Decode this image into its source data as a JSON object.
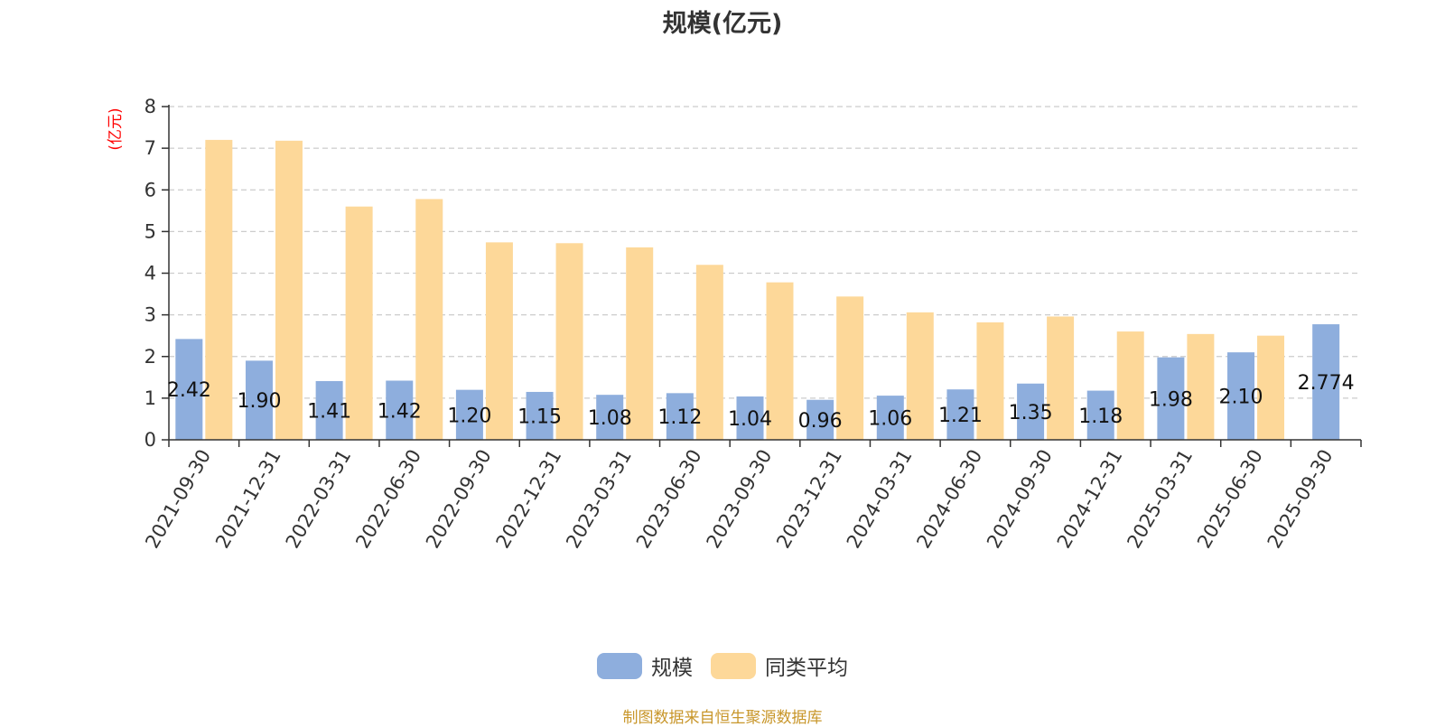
{
  "chart_data": {
    "type": "bar",
    "title": "规模(亿元)",
    "ylabel": "(亿元)",
    "xlabel": "",
    "ylim": [
      0,
      8
    ],
    "yticks": [
      0,
      1,
      2,
      3,
      4,
      5,
      6,
      7,
      8
    ],
    "grid": true,
    "legend_position": "bottom",
    "categories": [
      "2021-09-30",
      "2021-12-31",
      "2022-03-31",
      "2022-06-30",
      "2022-09-30",
      "2022-12-31",
      "2023-03-31",
      "2023-06-30",
      "2023-09-30",
      "2023-12-31",
      "2024-03-31",
      "2024-06-30",
      "2024-09-30",
      "2024-12-31",
      "2025-03-31",
      "2025-06-30",
      "2025-09-30"
    ],
    "series": [
      {
        "name": "规模",
        "color": "#8eaedd",
        "values": [
          2.42,
          1.9,
          1.41,
          1.42,
          1.2,
          1.15,
          1.08,
          1.12,
          1.04,
          0.96,
          1.06,
          1.21,
          1.35,
          1.18,
          1.98,
          2.1,
          2.774
        ],
        "labels": [
          "2.42",
          "1.90",
          "1.41",
          "1.42",
          "1.20",
          "1.15",
          "1.08",
          "1.12",
          "1.04",
          "0.96",
          "1.06",
          "1.21",
          "1.35",
          "1.18",
          "1.98",
          "2.10",
          "2.774"
        ]
      },
      {
        "name": "同类平均",
        "color": "#fdd899",
        "values": [
          7.2,
          7.18,
          5.6,
          5.78,
          4.74,
          4.72,
          4.62,
          4.2,
          3.78,
          3.44,
          3.06,
          2.82,
          2.96,
          2.6,
          2.54,
          2.5,
          null
        ]
      }
    ]
  },
  "source_note": "制图数据来自恒生聚源数据库"
}
